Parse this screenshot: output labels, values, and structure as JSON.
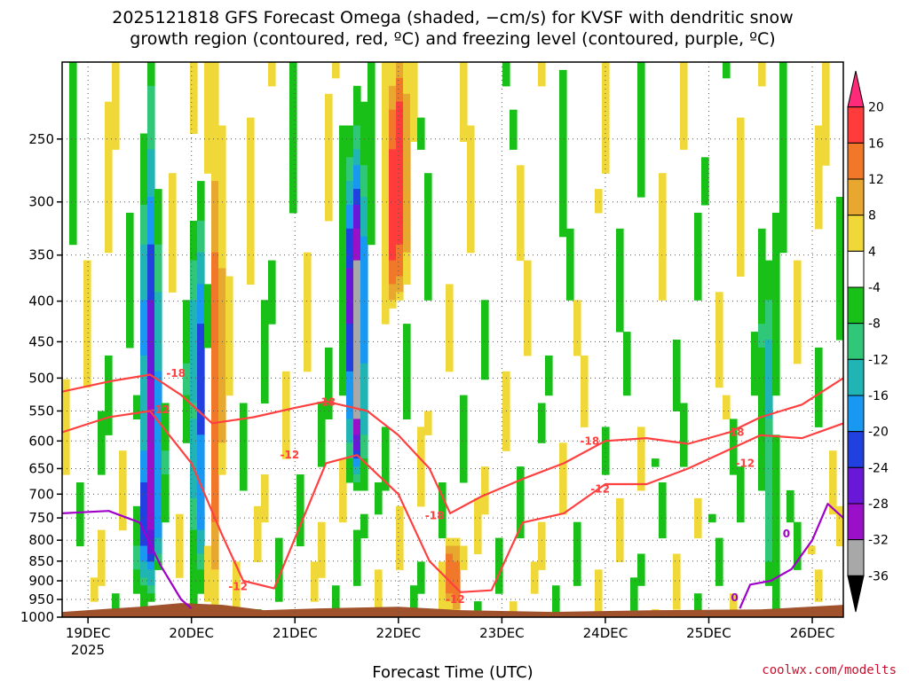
{
  "title": {
    "line1": "2025121818 GFS Forecast Omega (shaded, −cm/s) for KVSF with dendritic snow",
    "line2": "growth region (contoured, red, ºC) and freezing level (contoured, purple, ºC)"
  },
  "credit": "coolwx.com/modelts",
  "colors": {
    "terrain": "#a0522d",
    "dgz_contour": "#ff4040",
    "freezing_contour": "#a000c8",
    "grid": "#555555"
  },
  "chart_data": {
    "type": "heatmap",
    "xlabel": "Forecast Time (UTC)",
    "ylabel": "",
    "x_ticks": [
      "19DEC",
      "20DEC",
      "21DEC",
      "22DEC",
      "23DEC",
      "24DEC",
      "25DEC",
      "26DEC"
    ],
    "x_year_label": "2025",
    "x_range_days": [
      18.75,
      26.3
    ],
    "y_scale": "log-pressure",
    "y_range_hpa": [
      1000,
      200
    ],
    "y_ticks": [
      250,
      300,
      350,
      400,
      450,
      500,
      550,
      600,
      650,
      700,
      750,
      800,
      850,
      900,
      950,
      1000
    ],
    "colorbar": {
      "levels": [
        20,
        16,
        12,
        8,
        4,
        -4,
        -8,
        -12,
        -16,
        -20,
        -24,
        -28,
        -32,
        -36
      ],
      "colors": [
        "#ff2a7a",
        "#ff3b3b",
        "#f07828",
        "#e8a830",
        "#f0d838",
        "#ffffff",
        "#18c018",
        "#30c878",
        "#20b4b4",
        "#1898f0",
        "#2040e0",
        "#6a18d8",
        "#9a10c8",
        "#a8a8a8",
        "#000000"
      ],
      "extends": "both"
    },
    "omega_features": [
      {
        "name": "ascent core",
        "day": 21.6,
        "p_top": 270,
        "p_bottom": 650,
        "value": -36
      },
      {
        "name": "ascent core",
        "day": 19.6,
        "p_top": 300,
        "p_bottom": 900,
        "value": -32
      },
      {
        "name": "ascent core",
        "day": 20.1,
        "p_top": 320,
        "p_bottom": 850,
        "value": -28
      },
      {
        "name": "descent",
        "day": 20.2,
        "p_top": 200,
        "p_bottom": 950,
        "value": 20
      },
      {
        "name": "descent",
        "day": 22.0,
        "p_top": 200,
        "p_bottom": 400,
        "value": 20
      },
      {
        "name": "descent",
        "day": 22.5,
        "p_top": 800,
        "p_bottom": 975,
        "value": 12
      },
      {
        "name": "weak ascent",
        "day": 25.6,
        "p_top": 350,
        "p_bottom": 850,
        "value": -12
      }
    ],
    "series": [
      {
        "name": "-18",
        "contour": "dgz",
        "points": [
          [
            18.75,
            520
          ],
          [
            19.2,
            505
          ],
          [
            19.6,
            495
          ],
          [
            19.9,
            525
          ],
          [
            20.2,
            570
          ],
          [
            20.6,
            560
          ],
          [
            21.0,
            545
          ],
          [
            21.3,
            535
          ],
          [
            21.7,
            550
          ],
          [
            22.0,
            590
          ],
          [
            22.3,
            650
          ],
          [
            22.5,
            740
          ],
          [
            22.8,
            705
          ],
          [
            23.2,
            670
          ],
          [
            23.6,
            640
          ],
          [
            24.0,
            600
          ],
          [
            24.4,
            595
          ],
          [
            24.8,
            605
          ],
          [
            25.2,
            585
          ],
          [
            25.5,
            560
          ],
          [
            25.9,
            540
          ],
          [
            26.3,
            500
          ]
        ]
      },
      {
        "name": "-12",
        "contour": "dgz",
        "points": [
          [
            18.75,
            585
          ],
          [
            19.2,
            560
          ],
          [
            19.6,
            550
          ],
          [
            20.0,
            640
          ],
          [
            20.3,
            790
          ],
          [
            20.5,
            900
          ],
          [
            20.8,
            920
          ],
          [
            21.3,
            640
          ],
          [
            21.6,
            625
          ],
          [
            22.0,
            700
          ],
          [
            22.3,
            850
          ],
          [
            22.6,
            930
          ],
          [
            22.9,
            925
          ],
          [
            23.2,
            760
          ],
          [
            23.6,
            740
          ],
          [
            24.0,
            680
          ],
          [
            24.4,
            680
          ],
          [
            24.8,
            650
          ],
          [
            25.2,
            615
          ],
          [
            25.5,
            590
          ],
          [
            25.9,
            595
          ],
          [
            26.3,
            570
          ]
        ]
      },
      {
        "name": "0",
        "contour": "freezing",
        "points": [
          [
            18.75,
            740
          ],
          [
            19.2,
            735
          ],
          [
            19.5,
            760
          ],
          [
            19.7,
            860
          ],
          [
            19.9,
            950
          ],
          [
            20.0,
            975
          ]
        ]
      },
      {
        "name": "0",
        "contour": "freezing",
        "points": [
          [
            25.3,
            975
          ],
          [
            25.4,
            910
          ],
          [
            25.6,
            900
          ],
          [
            25.8,
            870
          ],
          [
            26.0,
            800
          ],
          [
            26.15,
            720
          ],
          [
            26.3,
            750
          ]
        ]
      }
    ],
    "contour_labels": [
      {
        "text": "-18",
        "day": 19.85,
        "p": 493,
        "contour": "dgz"
      },
      {
        "text": "-12",
        "day": 19.7,
        "p": 548,
        "contour": "dgz"
      },
      {
        "text": "-18",
        "day": 21.3,
        "p": 536,
        "contour": "dgz"
      },
      {
        "text": "-12",
        "day": 20.95,
        "p": 625,
        "contour": "dgz"
      },
      {
        "text": "-18",
        "day": 22.35,
        "p": 745,
        "contour": "dgz"
      },
      {
        "text": "-12",
        "day": 20.45,
        "p": 915,
        "contour": "dgz"
      },
      {
        "text": "-12",
        "day": 22.55,
        "p": 950,
        "contour": "dgz"
      },
      {
        "text": "-18",
        "day": 23.85,
        "p": 600,
        "contour": "dgz"
      },
      {
        "text": "-12",
        "day": 23.95,
        "p": 690,
        "contour": "dgz"
      },
      {
        "text": "-18",
        "day": 25.25,
        "p": 585,
        "contour": "dgz"
      },
      {
        "text": "-12",
        "day": 25.35,
        "p": 640,
        "contour": "dgz"
      },
      {
        "text": "0",
        "day": 25.75,
        "p": 785,
        "contour": "freezing"
      },
      {
        "text": "0",
        "day": 25.25,
        "p": 945,
        "contour": "freezing"
      }
    ],
    "surface_pressure_hpa": [
      [
        18.75,
        985
      ],
      [
        19.5,
        970
      ],
      [
        19.9,
        960
      ],
      [
        20.3,
        965
      ],
      [
        20.7,
        980
      ],
      [
        21.2,
        975
      ],
      [
        22.0,
        970
      ],
      [
        22.6,
        980
      ],
      [
        23.5,
        985
      ],
      [
        24.5,
        980
      ],
      [
        25.5,
        978
      ],
      [
        26.3,
        965
      ]
    ]
  }
}
